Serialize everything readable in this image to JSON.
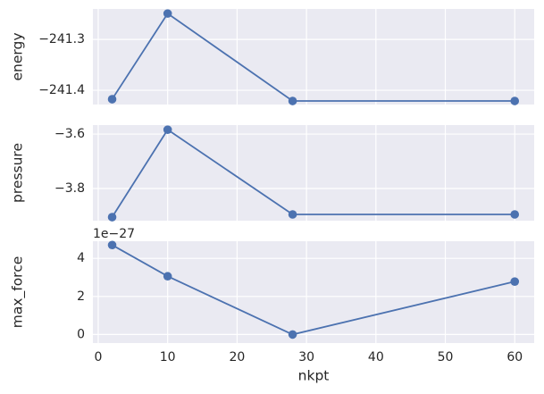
{
  "chart_data": [
    {
      "type": "line",
      "ylabel": "energy",
      "x": [
        2,
        10,
        28,
        60
      ],
      "values": [
        -241.4175,
        -241.249,
        -241.421,
        -241.421
      ],
      "color": "#4c72b0",
      "xlim": [
        -0.77,
        62.8
      ],
      "xticks": [
        0,
        10,
        20,
        30,
        40,
        50,
        60
      ],
      "show_xticklabels": false,
      "ylim": [
        -241.428,
        -241.24
      ],
      "yticks": [
        {
          "value": -241.4,
          "label": "−241.4"
        },
        {
          "value": -241.3,
          "label": "−241.3"
        }
      ],
      "grid": true
    },
    {
      "type": "line",
      "ylabel": "pressure",
      "x": [
        2,
        10,
        28,
        60
      ],
      "values": [
        -3.905,
        -3.584,
        -3.895,
        -3.895
      ],
      "color": "#4c72b0",
      "xlim": [
        -0.77,
        62.8
      ],
      "xticks": [
        0,
        10,
        20,
        30,
        40,
        50,
        60
      ],
      "show_xticklabels": false,
      "ylim": [
        -3.918,
        -3.567
      ],
      "yticks": [
        {
          "value": -3.8,
          "label": "−3.8"
        },
        {
          "value": -3.6,
          "label": "−3.6"
        }
      ],
      "grid": true
    },
    {
      "type": "line",
      "ylabel": "max_force",
      "xlabel": "nkpt",
      "offset_label": "1e−27",
      "x": [
        2,
        10,
        28,
        60
      ],
      "values": [
        4.7,
        3.06,
        0,
        2.78
      ],
      "color": "#4c72b0",
      "xlim": [
        -0.77,
        62.8
      ],
      "xticks": [
        0,
        10,
        20,
        30,
        40,
        50,
        60
      ],
      "show_xticklabels": true,
      "ylim": [
        -0.45,
        4.9
      ],
      "yticks": [
        0,
        2,
        4
      ],
      "grid": true
    }
  ]
}
